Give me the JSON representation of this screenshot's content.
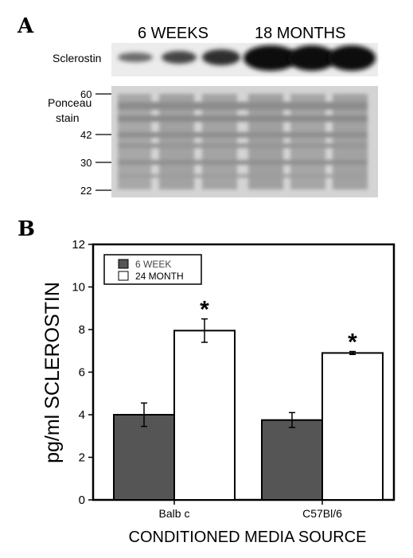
{
  "panel_a": {
    "letter": "A",
    "group_labels": [
      "6 WEEKS",
      "18 MONTHS"
    ],
    "band_label": "Sclerostin",
    "stain_label_line1": "Ponceau",
    "stain_label_line2": "stain",
    "markers": [
      "60",
      "42",
      "30",
      "22"
    ]
  },
  "panel_b": {
    "letter": "B"
  },
  "chart_data": {
    "type": "bar",
    "categories": [
      "Balb c",
      "C57Bl/6"
    ],
    "series": [
      {
        "name": "6 WEEK",
        "values": [
          4.0,
          3.75
        ],
        "errors": [
          0.55,
          0.35
        ],
        "color": "#555555"
      },
      {
        "name": "24 MONTH",
        "values": [
          7.95,
          6.9
        ],
        "errors": [
          0.55,
          0.07
        ],
        "color": "#ffffff"
      }
    ],
    "significance": [
      {
        "series": 1,
        "category": 0,
        "mark": "*"
      },
      {
        "series": 1,
        "category": 1,
        "mark": "*"
      }
    ],
    "xlabel": "CONDITIONED MEDIA SOURCE",
    "ylabel": "pg/ml SCLEROSTIN",
    "ylim": [
      0,
      12
    ],
    "yticks": [
      0,
      2,
      4,
      6,
      8,
      10,
      12
    ],
    "legend_position": "top-left",
    "grid": false
  }
}
